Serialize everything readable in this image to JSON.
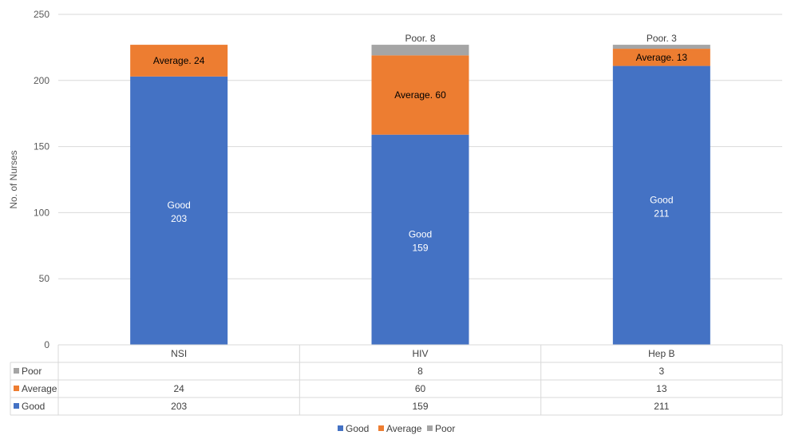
{
  "chart_data": {
    "type": "bar",
    "stacked": true,
    "title": "",
    "xlabel": "",
    "ylabel": "No. of Nurses",
    "ylim": [
      0,
      250
    ],
    "yticks": [
      "0",
      "50",
      "100",
      "150",
      "200",
      "250"
    ],
    "categories": [
      "NSI",
      "HIV",
      "Hep B"
    ],
    "grid": true,
    "legend_position": "bottom",
    "series": [
      {
        "name": "Good",
        "color": "#4472c4",
        "values": [
          203,
          159,
          211
        ],
        "labels": [
          "Good",
          "Good",
          "Good"
        ]
      },
      {
        "name": "Average",
        "color": "#ed7d31",
        "values": [
          24,
          60,
          13
        ],
        "labels": [
          "Average. 24",
          "Average. 60",
          "Average. 13"
        ]
      },
      {
        "name": "Poor",
        "color": "#a5a5a5",
        "values": [
          null,
          8,
          3
        ],
        "labels": [
          "",
          "Poor. 8",
          "Poor. 3"
        ]
      }
    ],
    "data_table": {
      "rows": [
        {
          "name": "Poor",
          "cells": [
            "",
            "8",
            "3"
          ]
        },
        {
          "name": "Average",
          "cells": [
            "24",
            "60",
            "13"
          ]
        },
        {
          "name": "Good",
          "cells": [
            "203",
            "159",
            "211"
          ]
        }
      ]
    }
  }
}
